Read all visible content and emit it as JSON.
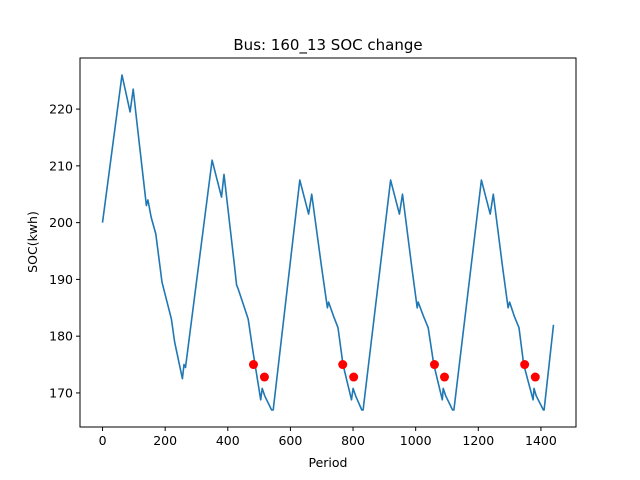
{
  "chart_data": {
    "type": "line",
    "title": "Bus: 160_13 SOC change",
    "xlabel": "Period",
    "ylabel": "SOC(kwh)",
    "xlim": [
      -72,
      1512
    ],
    "ylim": [
      164,
      229
    ],
    "xticks": [
      0,
      200,
      400,
      600,
      800,
      1000,
      1200,
      1400
    ],
    "yticks": [
      170,
      180,
      190,
      200,
      210,
      220
    ],
    "grid": false,
    "line_color": "#1f77b4",
    "marker_color": "#ff0000",
    "series": [
      {
        "type": "line",
        "x": [
          0,
          62,
          88,
          98,
          110,
          140,
          145,
          150,
          155,
          170,
          190,
          220,
          230,
          255,
          260,
          265,
          350,
          380,
          388,
          420,
          428,
          432,
          450,
          465,
          480,
          505,
          510,
          518,
          540,
          545,
          630,
          658,
          668,
          700,
          718,
          722,
          738,
          752,
          768,
          795,
          800,
          808,
          828,
          832,
          920,
          948,
          958,
          988,
          1005,
          1008,
          1025,
          1040,
          1058,
          1085,
          1088,
          1096,
          1118,
          1122,
          1210,
          1238,
          1248,
          1278,
          1295,
          1300,
          1315,
          1330,
          1345,
          1375,
          1378,
          1385,
          1408,
          1410,
          1440
        ],
        "y": [
          200,
          226,
          219.5,
          223.5,
          217.5,
          203,
          204,
          202.5,
          201,
          198,
          189.5,
          183,
          179,
          172.5,
          175,
          174.5,
          211,
          204.5,
          208.5,
          193,
          189,
          188.5,
          185.5,
          183,
          177.5,
          168.8,
          170.8,
          169.5,
          167,
          167,
          207.5,
          201.5,
          205,
          192,
          185,
          186,
          183.5,
          181.5,
          175,
          168.8,
          170.8,
          169.5,
          167,
          167,
          207.5,
          201.5,
          205,
          192,
          185,
          186,
          183.5,
          181.5,
          175,
          168.8,
          170.8,
          169.5,
          167,
          167,
          207.5,
          201.5,
          205,
          192,
          185,
          186,
          183.5,
          181.5,
          175,
          168.8,
          170.8,
          169.5,
          167,
          167,
          182
        ]
      },
      {
        "type": "scatter",
        "x": [
          482,
          517,
          767,
          802,
          1060,
          1092,
          1348,
          1382
        ],
        "y": [
          175,
          172.8,
          175,
          172.8,
          175,
          172.8,
          175,
          172.8
        ]
      }
    ]
  }
}
